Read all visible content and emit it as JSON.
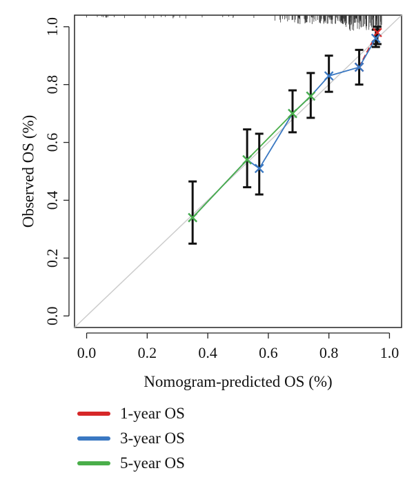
{
  "chart_data": {
    "type": "line",
    "xlabel": "Nomogram-predicted OS (%)",
    "ylabel": "Observed OS (%)",
    "xlim": [
      -0.04,
      1.04
    ],
    "ylim": [
      -0.04,
      1.04
    ],
    "xticks": [
      "0.0",
      "0.2",
      "0.4",
      "0.6",
      "0.8",
      "1.0"
    ],
    "yticks": [
      "0.0",
      "0.2",
      "0.4",
      "0.6",
      "0.8",
      "1.0"
    ],
    "reference_line": true,
    "grid": false,
    "legend_position": "bottom-left",
    "series": [
      {
        "name": "1-year OS",
        "color": "#d62728",
        "points": [
          {
            "x": 0.9,
            "y": 0.86,
            "lo": 0.8,
            "hi": 0.92
          },
          {
            "x": 0.96,
            "y": 0.98,
            "lo": 0.94,
            "hi": 1.0
          }
        ]
      },
      {
        "name": "3-year OS",
        "color": "#3a78c2",
        "points": [
          {
            "x": 0.35,
            "y": 0.34,
            "lo": 0.25,
            "hi": 0.465
          },
          {
            "x": 0.53,
            "y": 0.54,
            "lo": 0.445,
            "hi": 0.645
          },
          {
            "x": 0.57,
            "y": 0.51,
            "lo": 0.42,
            "hi": 0.63
          },
          {
            "x": 0.68,
            "y": 0.7,
            "lo": 0.635,
            "hi": 0.78
          },
          {
            "x": 0.74,
            "y": 0.76,
            "lo": 0.685,
            "hi": 0.84
          },
          {
            "x": 0.8,
            "y": 0.83,
            "lo": 0.775,
            "hi": 0.9
          },
          {
            "x": 0.9,
            "y": 0.86,
            "lo": 0.8,
            "hi": 0.925
          },
          {
            "x": 0.955,
            "y": 0.96,
            "lo": 0.93,
            "hi": 0.99
          }
        ]
      },
      {
        "name": "5-year OS",
        "color": "#4aae4a",
        "points": [
          {
            "x": 0.35,
            "y": 0.34,
            "lo": 0.25,
            "hi": 0.465
          },
          {
            "x": 0.53,
            "y": 0.54,
            "lo": 0.445,
            "hi": 0.645
          },
          {
            "x": 0.68,
            "y": 0.7,
            "lo": 0.635,
            "hi": 0.78
          },
          {
            "x": 0.74,
            "y": 0.76,
            "lo": 0.685,
            "hi": 0.84
          }
        ]
      }
    ]
  }
}
